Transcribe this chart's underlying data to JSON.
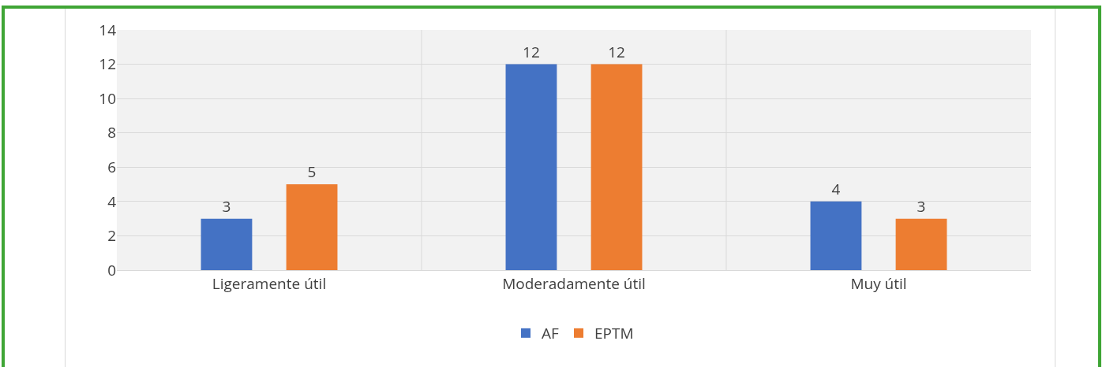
{
  "chart_data": {
    "type": "bar",
    "categories": [
      "Ligeramente útil",
      "Moderadamente útil",
      "Muy útil"
    ],
    "series": [
      {
        "name": "AF",
        "color": "#4472c4",
        "values": [
          3,
          12,
          4
        ]
      },
      {
        "name": "EPTM",
        "color": "#ed7d31",
        "values": [
          5,
          12,
          3
        ]
      }
    ],
    "ylim": [
      0,
      14
    ],
    "yticks": [
      0,
      2,
      4,
      6,
      8,
      10,
      12,
      14
    ],
    "grid": true,
    "legend": "bottom",
    "data_labels": true
  }
}
